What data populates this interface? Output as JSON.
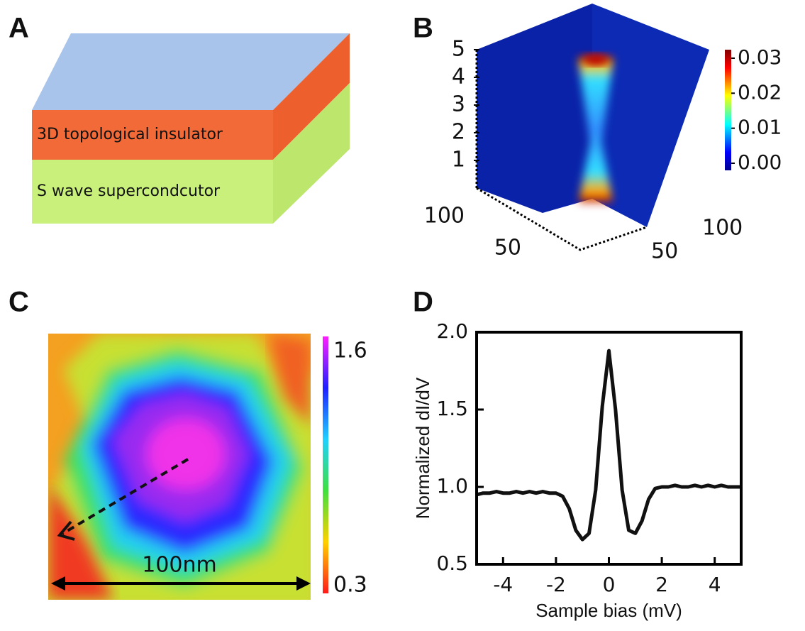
{
  "panel_labels": [
    "A",
    "B",
    "C",
    "D"
  ],
  "panel_a": {
    "layers": [
      "3D topological insulator",
      "S wave supercondcutor"
    ]
  },
  "panel_b": {
    "z_ticks": [
      1,
      2,
      3,
      4,
      5
    ],
    "colorbar_ticks": [
      {
        "value": 0.03,
        "label": "0.03"
      },
      {
        "value": 0.02,
        "label": "0.02"
      },
      {
        "value": 0.01,
        "label": "0.01"
      },
      {
        "value": 0,
        "label": "0.00"
      }
    ],
    "left_axis_ticks": [
      100,
      50
    ],
    "right_axis_ticks": [
      100,
      50
    ]
  },
  "panel_c": {
    "colorbar_ticks": [
      1.6,
      0.3
    ],
    "scale_bar": "100nm"
  },
  "chart_data": {
    "type": "line",
    "x_label": "Sample bias (mV)",
    "y_label": "Normalized dI/dV",
    "x": [
      -5,
      -4.75,
      -4.5,
      -4.25,
      -4,
      -3.75,
      -3.5,
      -3.25,
      -3,
      -2.75,
      -2.5,
      -2.25,
      -2,
      -1.75,
      -1.5,
      -1.25,
      -1,
      -0.75,
      -0.5,
      -0.25,
      0,
      0.25,
      0.5,
      0.75,
      1,
      1.25,
      1.5,
      1.75,
      2,
      2.25,
      2.5,
      2.75,
      3,
      3.25,
      3.5,
      3.75,
      4,
      4.25,
      4.5,
      4.75,
      5
    ],
    "series": [
      {
        "color": "#111111",
        "values": [
          0.95,
          0.96,
          0.96,
          0.97,
          0.96,
          0.96,
          0.97,
          0.96,
          0.97,
          0.96,
          0.97,
          0.96,
          0.96,
          0.94,
          0.86,
          0.72,
          0.66,
          0.7,
          0.98,
          1.52,
          1.88,
          1.5,
          0.98,
          0.72,
          0.7,
          0.78,
          0.92,
          0.99,
          1.0,
          1.0,
          1.01,
          1.0,
          1.0,
          1.01,
          1.0,
          1.01,
          1.0,
          1.01,
          1.0,
          1.0,
          1.0
        ]
      }
    ],
    "xlim": [
      -5,
      5
    ],
    "ylim": [
      0.5,
      2.0
    ],
    "xticks": [
      -4,
      -2,
      0,
      2,
      4
    ],
    "yticks": [
      0.5,
      {
        "value": 1,
        "label": "1.0"
      },
      1.5,
      {
        "value": 2,
        "label": "2.0"
      }
    ]
  }
}
